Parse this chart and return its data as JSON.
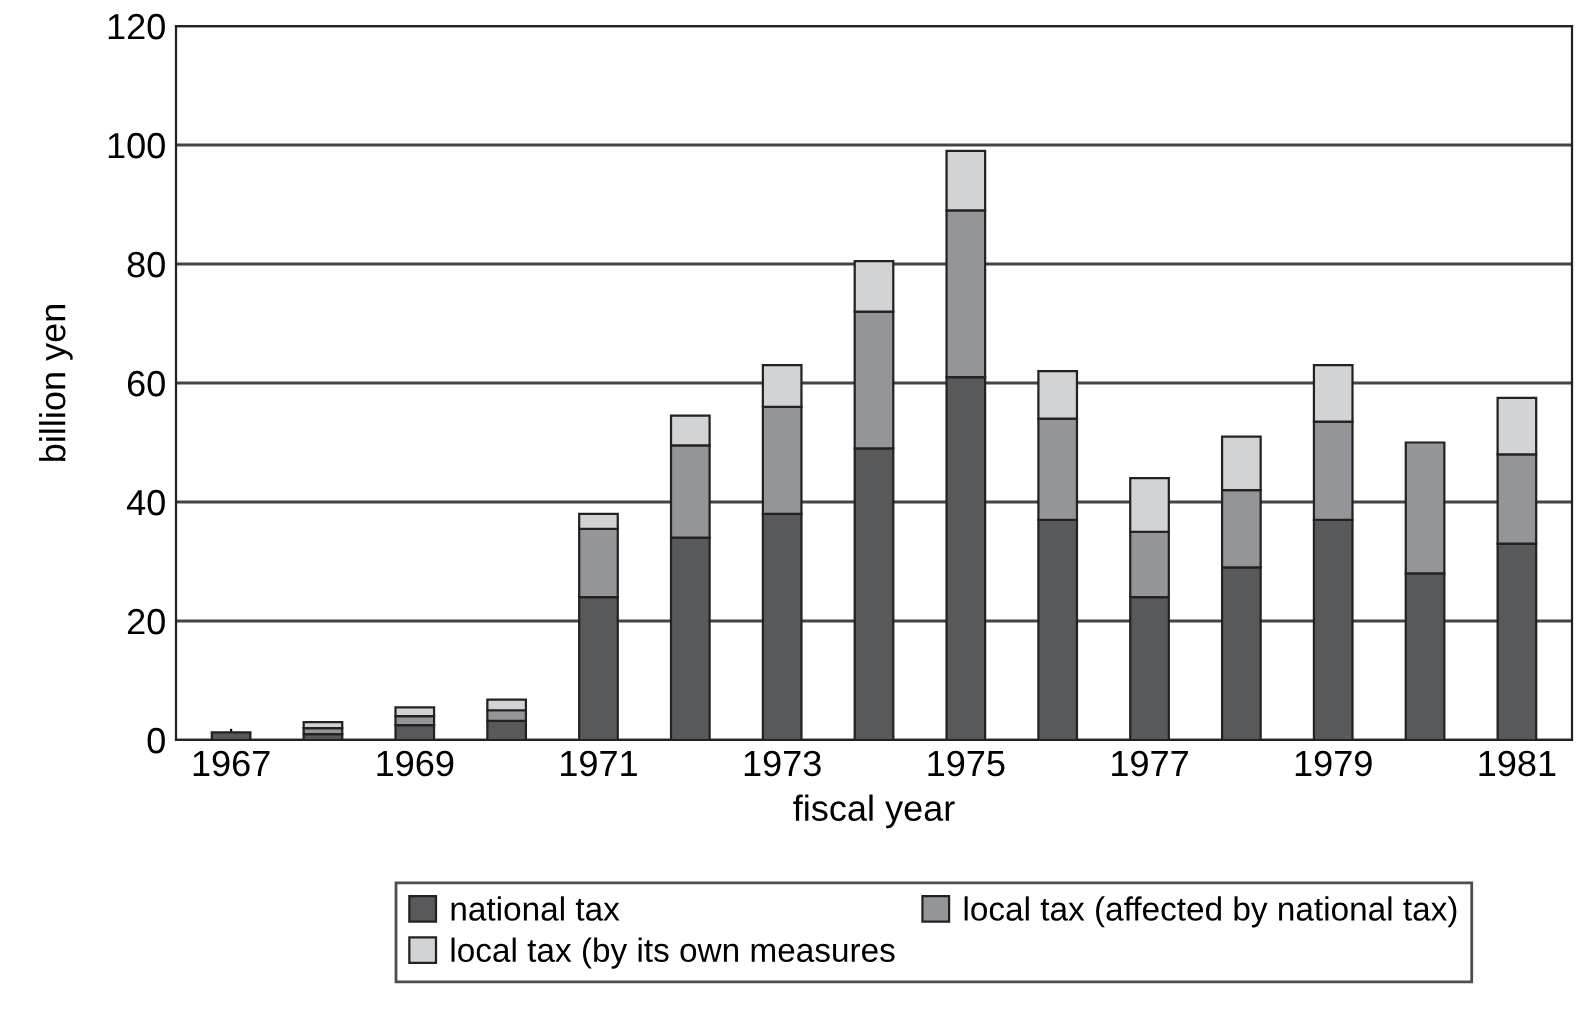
{
  "chart_data": {
    "type": "bar",
    "stacked": true,
    "xlabel": "fiscal year",
    "ylabel": "billion yen",
    "categories": [
      "1967",
      null,
      "1969",
      null,
      "1971",
      null,
      "1973",
      null,
      "1975",
      null,
      "1977",
      null,
      "1979",
      null,
      "1981"
    ],
    "series": [
      {
        "name": "national tax",
        "color": "#58595b",
        "values": [
          1.3,
          1,
          2.5,
          3.2,
          24,
          34,
          38,
          49,
          61,
          37,
          24,
          29,
          37,
          28,
          33
        ]
      },
      {
        "name": "local tax (affected by national tax)",
        "color": "#939598",
        "values": [
          null,
          1,
          1.5,
          1.8,
          11.5,
          15.5,
          18,
          23,
          28,
          17,
          11,
          13,
          16.5,
          22,
          15
        ]
      },
      {
        "name": "local tax (by its own measures",
        "color": "#d1d3d4",
        "values": [
          null,
          1,
          1.5,
          1.8,
          2.5,
          5,
          7,
          8.5,
          10,
          8,
          9,
          9,
          9.5,
          null,
          9.5
        ]
      }
    ],
    "ylim": [
      0,
      120
    ],
    "yticks": [
      0,
      20,
      40,
      60,
      80,
      100,
      120
    ],
    "grid": "y",
    "legend": "bottom"
  }
}
